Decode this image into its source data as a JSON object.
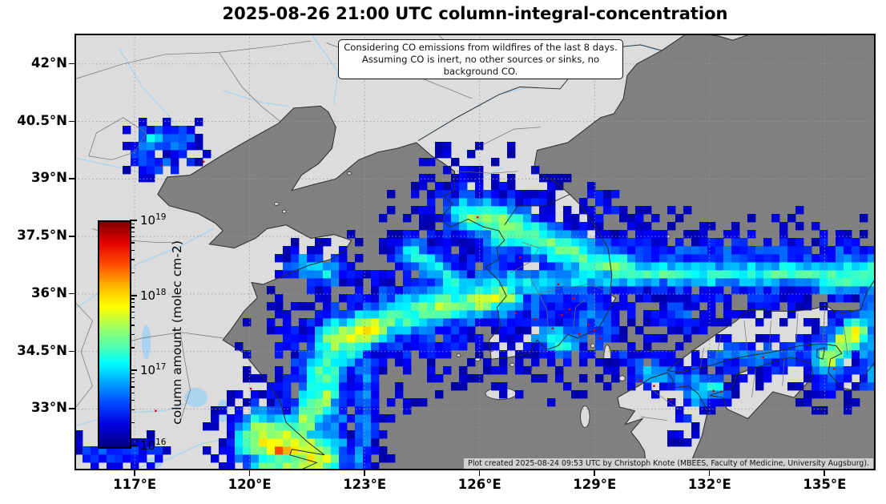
{
  "figure": {
    "title": "2025-08-26 21:00 UTC column-integral-concentration"
  },
  "annotation_box": {
    "line1": "Considering CO emissions from wildfires of the last 8 days.",
    "line2": "Assuming CO is inert, no other sources or sinks, no background CO."
  },
  "credit": "Plot created 2025-08-24 09:53 UTC by Christoph Knote (MBEES, Faculty of Medicine, University Augsburg).",
  "colorbar": {
    "label": "column amount (molec cm-2)",
    "base": "10",
    "tick_exponents": [
      "19",
      "18",
      "17",
      "16"
    ],
    "scale": "log",
    "min": "1e16",
    "max": "1e19",
    "colormap": "jet"
  },
  "axes": {
    "lat_tick_labels": [
      "42°N",
      "40.5°N",
      "39°N",
      "37.5°N",
      "36°N",
      "34.5°N",
      "33°N"
    ],
    "lat_tick_values": [
      42,
      40.5,
      39,
      37.5,
      36,
      34.5,
      33
    ],
    "lon_tick_labels": [
      "117°E",
      "120°E",
      "123°E",
      "126°E",
      "129°E",
      "132°E",
      "135°E"
    ],
    "lon_tick_values": [
      117,
      120,
      123,
      126,
      129,
      132,
      135
    ]
  },
  "colors": {
    "sea": "#808080",
    "land": "#dcdcdc",
    "river": "#a9d3ee",
    "lake": "#a9d3ee",
    "grid": "#999999",
    "coast": "#2a2a2a",
    "border": "#6f6f6f",
    "country_border": "#222222",
    "fire": "#d40000",
    "frame": "#000000",
    "annotation_bg": "#ffffff",
    "credit_bg": "#d8d8d8"
  },
  "chart_data": {
    "type": "heatmap",
    "title": "2025-08-26 21:00 UTC column-integral-concentration",
    "projection": "PlateCarree (lon/lat degrees)",
    "extent": {
      "lon_min": 115.43,
      "lon_max": 136.33,
      "lat_min": 31.4,
      "lat_max": 42.79
    },
    "lon_gridlines": [
      117,
      120,
      123,
      126,
      129,
      132,
      135
    ],
    "lat_gridlines": [
      33,
      34.5,
      36,
      37.5,
      39,
      40.5,
      42
    ],
    "grid": "dotted",
    "legend_position": "colorbar inside plot, left",
    "value_scale": {
      "type": "log10",
      "min": 1e+16,
      "max": 1e+19,
      "units": "molec cm-2"
    },
    "plume_description": "CO plume from Yangtze-delta wildfire source arcing NE across the Yellow Sea over South Korea, with a long transport band across the Sea of Japan and patches over NE China, Kyushu and western Honshu. Values are log10 column amount (v) with gaussian half-width w in degrees.",
    "plume_streaks": [
      {
        "v": 17.75,
        "w": 0.5,
        "pts": [
          [
            120.3,
            32.25
          ],
          [
            121.0,
            32.1
          ],
          [
            121.8,
            31.7
          ]
        ]
      },
      {
        "v": 18.25,
        "w": 0.22,
        "pts": [
          [
            120.7,
            32.0
          ],
          [
            120.95,
            31.95
          ]
        ]
      },
      {
        "v": 17.5,
        "w": 0.35,
        "pts": [
          [
            120.5,
            31.55
          ],
          [
            121.4,
            31.45
          ]
        ]
      },
      {
        "v": 17.2,
        "w": 0.3,
        "pts": [
          [
            119.9,
            32.1
          ],
          [
            120.3,
            32.25
          ]
        ]
      },
      {
        "v": 17.35,
        "w": 0.42,
        "pts": [
          [
            121.5,
            32.7
          ],
          [
            121.9,
            33.6
          ],
          [
            122.1,
            34.4
          ],
          [
            122.9,
            35.0
          ],
          [
            124.0,
            35.5
          ],
          [
            125.2,
            35.75
          ],
          [
            126.4,
            35.95
          ]
        ]
      },
      {
        "v": 16.55,
        "w": 0.95,
        "pts": [
          [
            121.5,
            32.7
          ],
          [
            121.9,
            33.6
          ],
          [
            122.1,
            34.4
          ],
          [
            122.9,
            35.0
          ],
          [
            124.0,
            35.5
          ],
          [
            125.2,
            35.75
          ]
        ]
      },
      {
        "v": 17.7,
        "w": 0.38,
        "pts": [
          [
            122.2,
            34.8
          ],
          [
            123.3,
            35.15
          ]
        ]
      },
      {
        "v": 17.6,
        "w": 0.3,
        "pts": [
          [
            121.4,
            32.6
          ],
          [
            122.0,
            33.4
          ]
        ]
      },
      {
        "v": 17.6,
        "w": 0.3,
        "pts": [
          [
            124.8,
            35.55
          ],
          [
            125.8,
            35.8
          ],
          [
            126.7,
            35.95
          ]
        ]
      },
      {
        "v": 17.3,
        "w": 0.38,
        "pts": [
          [
            125.6,
            38.1
          ],
          [
            126.6,
            37.9
          ],
          [
            127.7,
            37.35
          ],
          [
            128.9,
            36.9
          ],
          [
            129.9,
            36.65
          ]
        ]
      },
      {
        "v": 16.45,
        "w": 0.8,
        "pts": [
          [
            125.6,
            38.1
          ],
          [
            126.6,
            37.9
          ],
          [
            127.7,
            37.35
          ],
          [
            128.9,
            36.9
          ],
          [
            129.9,
            36.65
          ]
        ]
      },
      {
        "v": 17.6,
        "w": 0.28,
        "pts": [
          [
            125.9,
            38.05
          ],
          [
            126.8,
            37.85
          ]
        ]
      },
      {
        "v": 17.0,
        "w": 0.3,
        "pts": [
          [
            124.2,
            37.1
          ],
          [
            125.0,
            36.6
          ],
          [
            125.7,
            36.0
          ]
        ]
      },
      {
        "v": 16.95,
        "w": 0.33,
        "pts": [
          [
            126.3,
            36.35
          ],
          [
            127.5,
            36.25
          ],
          [
            128.7,
            36.4
          ],
          [
            129.8,
            36.55
          ]
        ]
      },
      {
        "v": 17.2,
        "w": 0.26,
        "pts": [
          [
            129.9,
            36.6
          ],
          [
            131.8,
            36.5
          ],
          [
            133.8,
            36.55
          ],
          [
            135.4,
            36.5
          ],
          [
            136.4,
            36.6
          ]
        ]
      },
      {
        "v": 16.5,
        "w": 0.7,
        "pts": [
          [
            129.9,
            36.6
          ],
          [
            131.8,
            36.5
          ],
          [
            133.8,
            36.55
          ],
          [
            135.4,
            36.5
          ],
          [
            136.4,
            36.6
          ]
        ]
      },
      {
        "v": 17.35,
        "w": 0.33,
        "pts": [
          [
            135.0,
            36.45
          ],
          [
            136.4,
            36.55
          ]
        ]
      },
      {
        "v": 16.6,
        "w": 0.28,
        "pts": [
          [
            130.2,
            36.95
          ],
          [
            133.0,
            37.05
          ],
          [
            136.4,
            36.95
          ]
        ]
      },
      {
        "v": 16.75,
        "w": 0.24,
        "pts": [
          [
            122.25,
            35.4
          ],
          [
            122.2,
            33.5
          ],
          [
            122.35,
            31.5
          ]
        ]
      },
      {
        "v": 16.7,
        "w": 0.24,
        "pts": [
          [
            123.05,
            34.3
          ],
          [
            123.0,
            32.4
          ],
          [
            122.85,
            31.5
          ]
        ]
      },
      {
        "v": 16.55,
        "w": 0.2,
        "pts": [
          [
            121.7,
            33.2
          ],
          [
            121.75,
            31.7
          ]
        ]
      },
      {
        "v": 16.8,
        "w": 0.25,
        "pts": [
          [
            117.25,
            40.0
          ],
          [
            118.3,
            40.0
          ]
        ]
      },
      {
        "v": 17.0,
        "w": 0.2,
        "pts": [
          [
            117.45,
            40.0
          ],
          [
            117.6,
            40.0
          ]
        ]
      },
      {
        "v": 16.7,
        "w": 0.2,
        "pts": [
          [
            117.2,
            39.95
          ],
          [
            117.2,
            39.55
          ]
        ]
      },
      {
        "v": 16.6,
        "w": 0.2,
        "pts": [
          [
            117.35,
            39.4
          ],
          [
            117.85,
            39.4
          ]
        ]
      },
      {
        "v": 16.4,
        "w": 0.15,
        "pts": [
          [
            118.45,
            39.35
          ],
          [
            118.5,
            39.35
          ]
        ]
      },
      {
        "v": 17.15,
        "w": 0.3,
        "pts": [
          [
            127.8,
            34.9
          ],
          [
            128.2,
            34.75
          ]
        ]
      },
      {
        "v": 17.75,
        "w": 0.27,
        "pts": [
          [
            135.1,
            34.3
          ],
          [
            135.45,
            34.7
          ],
          [
            135.85,
            35.05
          ]
        ]
      },
      {
        "v": 16.7,
        "w": 0.55,
        "pts": [
          [
            135.1,
            34.3
          ],
          [
            135.45,
            34.7
          ],
          [
            135.85,
            35.05
          ]
        ]
      },
      {
        "v": 16.6,
        "w": 0.3,
        "pts": [
          [
            132.2,
            34.4
          ],
          [
            133.6,
            34.35
          ],
          [
            134.7,
            34.6
          ]
        ]
      },
      {
        "v": 17.1,
        "w": 0.28,
        "pts": [
          [
            131.7,
            33.45
          ],
          [
            132.1,
            33.55
          ]
        ]
      },
      {
        "v": 16.7,
        "w": 0.2,
        "pts": [
          [
            131.6,
            33.9
          ],
          [
            131.7,
            33.4
          ]
        ]
      },
      {
        "v": 16.8,
        "w": 0.22,
        "pts": [
          [
            130.2,
            33.95
          ],
          [
            130.9,
            33.85
          ],
          [
            131.4,
            33.75
          ]
        ]
      },
      {
        "v": 16.7,
        "w": 0.3,
        "pts": [
          [
            136.25,
            36.0
          ],
          [
            136.1,
            34.9
          ],
          [
            136.2,
            33.9
          ]
        ]
      },
      {
        "v": 16.55,
        "w": 0.33,
        "pts": [
          [
            131.0,
            35.45
          ],
          [
            131.5,
            35.4
          ]
        ]
      },
      {
        "v": 16.4,
        "w": 0.25,
        "pts": [
          [
            131.3,
            33.0
          ],
          [
            131.45,
            32.4
          ]
        ]
      },
      {
        "v": 16.45,
        "w": 0.22,
        "pts": [
          [
            115.7,
            31.9
          ],
          [
            116.6,
            31.85
          ],
          [
            117.5,
            31.8
          ]
        ]
      },
      {
        "v": 17.2,
        "w": 0.3,
        "pts": [
          [
            126.4,
            37.4
          ],
          [
            126.9,
            37.6
          ]
        ]
      },
      {
        "v": 16.45,
        "w": 0.35,
        "pts": [
          [
            129.8,
            34.5
          ],
          [
            130.6,
            34.2
          ]
        ]
      },
      {
        "v": 17.0,
        "w": 0.25,
        "pts": [
          [
            121.3,
            36.75
          ],
          [
            122.1,
            36.55
          ]
        ]
      }
    ],
    "plume_patches": [
      {
        "v": 16.55,
        "c": [
          127.9,
          35.9
        ],
        "rx": 1.9,
        "ry": 1.5
      },
      {
        "v": 16.6,
        "c": [
          128.8,
          35.3
        ],
        "rx": 1.1,
        "ry": 1.0
      },
      {
        "v": 16.45,
        "c": [
          126.3,
          38.35
        ],
        "rx": 1.3,
        "ry": 0.55
      },
      {
        "v": 16.35,
        "c": [
          124.9,
          37.5
        ],
        "rx": 1.0,
        "ry": 0.9
      },
      {
        "v": 16.7,
        "c": [
          121.9,
          36.6
        ],
        "rx": 0.85,
        "ry": 0.5
      },
      {
        "v": 16.6,
        "c": [
          126.4,
          37.0
        ],
        "rx": 0.8,
        "ry": 0.7
      },
      {
        "v": 16.2,
        "c": [
          133.5,
          37.4
        ],
        "rx": 1.8,
        "ry": 0.5
      },
      {
        "v": 16.35,
        "c": [
          129.3,
          38.35
        ],
        "rx": 0.6,
        "ry": 0.5
      }
    ],
    "fire_markers": [
      [
        127.05,
        36.95
      ],
      [
        128.05,
        36.25
      ],
      [
        127.45,
        35.35
      ],
      [
        126.95,
        35.5
      ],
      [
        128.45,
        35.9
      ],
      [
        128.35,
        35.6
      ],
      [
        128.15,
        35.45
      ],
      [
        128.85,
        35.2
      ],
      [
        129.0,
        35.05
      ],
      [
        128.6,
        34.95
      ],
      [
        129.15,
        34.85
      ],
      [
        127.9,
        35.1
      ],
      [
        125.95,
        38.0
      ],
      [
        117.71,
        39.34
      ],
      [
        118.8,
        39.45
      ],
      [
        117.55,
        32.95
      ],
      [
        120.03,
        33.53
      ],
      [
        130.2,
        33.74
      ],
      [
        130.55,
        33.6
      ],
      [
        131.0,
        33.24
      ],
      [
        132.1,
        33.47
      ],
      [
        132.3,
        33.45
      ],
      [
        133.4,
        34.35
      ],
      [
        135.25,
        34.05
      ]
    ]
  }
}
